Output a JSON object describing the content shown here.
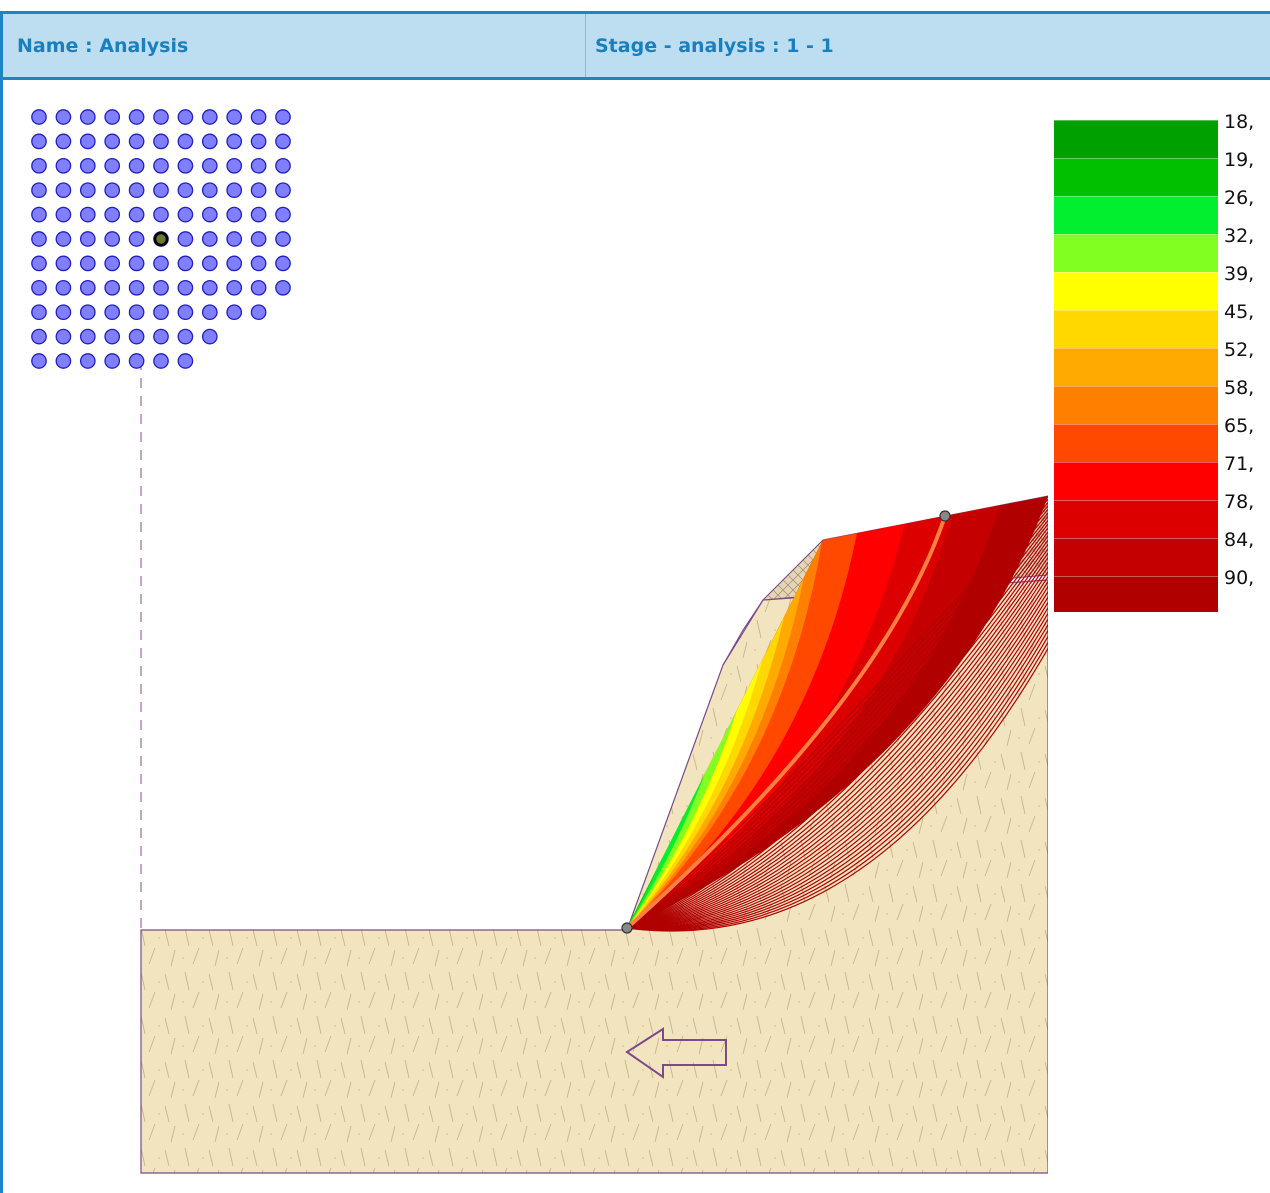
{
  "header": {
    "name_label": "Name : Analysis",
    "stage_label": "Stage - analysis : 1 - 1"
  },
  "legend": {
    "entries": [
      {
        "label": "18,",
        "color": "#00a000"
      },
      {
        "label": "19,",
        "color": "#00c000"
      },
      {
        "label": "26,",
        "color": "#00f030"
      },
      {
        "label": "32,",
        "color": "#80ff20"
      },
      {
        "label": "39,",
        "color": "#ffff00"
      },
      {
        "label": "45,",
        "color": "#ffd800"
      },
      {
        "label": "52,",
        "color": "#ffaa00"
      },
      {
        "label": "58,",
        "color": "#ff8000"
      },
      {
        "label": "65,",
        "color": "#ff4800"
      },
      {
        "label": "71,",
        "color": "#ff0000"
      },
      {
        "label": "78,",
        "color": "#dc0000"
      },
      {
        "label": "84,",
        "color": "#c40000"
      },
      {
        "label": "90,",
        "color": "#b00000"
      }
    ]
  },
  "colors": {
    "soil_fill": "#f3e4c0",
    "soil_outline": "#7a4a8a",
    "grid_point": "#7f7fff",
    "grid_point_stroke": "#2020c0",
    "critical_surface": "#ff8040",
    "arrow_outline": "#7a4a8a"
  },
  "icons": {
    "direction_arrow": "left-arrow-icon"
  }
}
